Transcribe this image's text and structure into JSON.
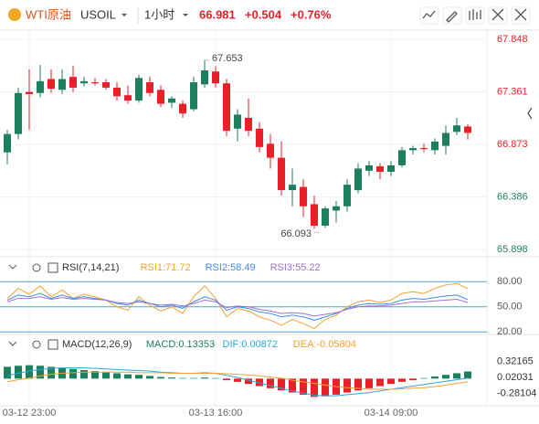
{
  "header": {
    "symbol_name": "WTI原油",
    "symbol": "USOIL",
    "interval": "1小时",
    "price": "66.981",
    "change": "+0.504",
    "change_pct": "+0.76%"
  },
  "chart_data": [
    {
      "type": "candlestick",
      "categories": [
        null,
        null,
        "03-12 23:00",
        null,
        null,
        null,
        null,
        null,
        null,
        null,
        null,
        null,
        null,
        null,
        null,
        null,
        null,
        null,
        null,
        "03-13 16:00",
        null,
        null,
        null,
        null,
        null,
        null,
        null,
        null,
        null,
        null,
        null,
        null,
        null,
        null,
        null,
        "03-14 09:00",
        null,
        null,
        null,
        null,
        null,
        null,
        null
      ],
      "open": [
        66.8,
        66.97,
        67.36,
        67.35,
        67.48,
        67.38,
        67.5,
        67.44,
        67.45,
        67.45,
        67.4,
        67.33,
        67.28,
        67.45,
        67.38,
        67.26,
        67.25,
        67.2,
        67.43,
        67.55,
        67.44,
        67.02,
        67.12,
        67.02,
        66.88,
        66.75,
        66.45,
        66.48,
        66.32,
        66.12,
        66.26,
        66.3,
        66.45,
        66.63,
        66.67,
        66.62,
        66.68,
        66.82,
        66.84,
        66.82,
        66.86,
        66.99,
        67.04
      ],
      "high": [
        67.01,
        67.4,
        67.57,
        67.61,
        67.57,
        67.57,
        67.6,
        67.5,
        67.49,
        67.48,
        67.45,
        67.42,
        67.52,
        67.5,
        67.42,
        67.32,
        67.28,
        67.5,
        67.653,
        67.6,
        67.48,
        67.2,
        67.3,
        67.08,
        66.97,
        66.9,
        66.65,
        66.55,
        66.4,
        66.3,
        66.35,
        66.55,
        66.7,
        66.72,
        66.7,
        66.72,
        66.85,
        66.86,
        66.88,
        66.93,
        67.05,
        67.12,
        67.06
      ],
      "low": [
        66.69,
        66.92,
        67.01,
        67.31,
        67.35,
        67.34,
        67.36,
        67.41,
        67.42,
        67.38,
        67.28,
        67.25,
        67.26,
        67.32,
        67.22,
        67.21,
        67.12,
        67.18,
        67.4,
        67.4,
        66.95,
        66.9,
        66.95,
        66.8,
        66.65,
        66.4,
        66.3,
        66.2,
        66.093,
        66.1,
        66.15,
        66.25,
        66.42,
        66.58,
        66.55,
        66.58,
        66.66,
        66.78,
        66.8,
        66.78,
        66.78,
        66.96,
        66.92
      ],
      "close": [
        66.97,
        67.35,
        67.34,
        67.46,
        67.39,
        67.48,
        67.4,
        67.46,
        67.44,
        67.4,
        67.32,
        67.28,
        67.49,
        67.35,
        67.25,
        67.3,
        67.16,
        67.45,
        67.56,
        67.44,
        67.0,
        67.15,
        67.0,
        66.85,
        66.75,
        66.45,
        66.5,
        66.3,
        66.12,
        66.28,
        66.3,
        66.5,
        66.65,
        66.68,
        66.62,
        66.68,
        66.82,
        66.84,
        66.83,
        66.9,
        66.98,
        67.05,
        66.981
      ],
      "up_color": "#1e7f5c",
      "down_color": "#e8202a",
      "ylim": [
        65.832,
        67.933
      ],
      "yticks": [
        67.848,
        67.361,
        66.873,
        66.386,
        65.898
      ],
      "ytick_colors": [
        "#e8202a",
        "#e8202a",
        "#e8202a",
        "#1e7f5c",
        "#1e7f5c"
      ],
      "grid": true
    },
    {
      "type": "line",
      "title": "RSI(7,14,21)",
      "series": [
        {
          "name": "RSI1:71.72",
          "color": "#f5a030",
          "values": [
            60,
            72,
            65,
            75,
            62,
            70,
            60,
            65,
            62,
            58,
            50,
            46,
            62,
            52,
            45,
            50,
            42,
            62,
            75,
            60,
            38,
            48,
            45,
            38,
            34,
            28,
            35,
            30,
            24,
            35,
            40,
            50,
            56,
            58,
            55,
            58,
            66,
            68,
            66,
            72,
            76,
            78,
            71.72
          ]
        },
        {
          "name": "RSI2:58.49",
          "color": "#3a8ee6",
          "values": [
            58,
            64,
            62,
            66,
            60,
            64,
            60,
            62,
            60,
            58,
            54,
            52,
            58,
            54,
            50,
            52,
            48,
            56,
            62,
            58,
            46,
            50,
            48,
            44,
            42,
            38,
            40,
            38,
            34,
            38,
            42,
            48,
            52,
            54,
            53,
            54,
            58,
            60,
            59,
            61,
            63,
            64,
            58.49
          ]
        },
        {
          "name": "RSI3:55.22",
          "color": "#a070d0",
          "values": [
            56,
            60,
            60,
            62,
            59,
            61,
            59,
            60,
            59,
            58,
            55,
            54,
            56,
            54,
            52,
            53,
            51,
            54,
            58,
            56,
            49,
            51,
            50,
            47,
            45,
            42,
            43,
            42,
            39,
            41,
            43,
            47,
            50,
            51,
            51,
            52,
            54,
            56,
            56,
            57,
            58,
            59,
            55.22
          ]
        }
      ],
      "ylim": [
        17,
        89
      ],
      "yticks": [
        {
          "value": 80,
          "label": "80.00"
        },
        {
          "value": 50,
          "label": "50.00"
        },
        {
          "value": 20,
          "label": "20.00"
        }
      ]
    },
    {
      "type": "macd",
      "title": "MACD(12,26,9)",
      "series": [
        {
          "name": "MACD:0.13353",
          "up_color": "#1e7f5c",
          "down_color": "#e8202a",
          "values": [
            0.22,
            0.24,
            0.25,
            0.24,
            0.22,
            0.2,
            0.18,
            0.16,
            0.14,
            0.12,
            0.1,
            0.08,
            0.07,
            0.05,
            0.03,
            0.02,
            0.01,
            0.01,
            0.02,
            0.01,
            -0.03,
            -0.06,
            -0.1,
            -0.14,
            -0.18,
            -0.22,
            -0.26,
            -0.3,
            -0.34,
            -0.33,
            -0.3,
            -0.26,
            -0.22,
            -0.18,
            -0.14,
            -0.1,
            -0.06,
            -0.03,
            0.01,
            0.04,
            0.07,
            0.1,
            0.13353
          ]
        },
        {
          "name": "DIF:0.00872",
          "color": "#2aa8d8",
          "values": [
            0.05,
            0.1,
            0.14,
            0.17,
            0.19,
            0.2,
            0.2,
            0.2,
            0.19,
            0.18,
            0.17,
            0.16,
            0.15,
            0.14,
            0.12,
            0.11,
            0.1,
            0.1,
            0.11,
            0.1,
            0.06,
            0.02,
            -0.03,
            -0.08,
            -0.13,
            -0.18,
            -0.23,
            -0.27,
            -0.31,
            -0.32,
            -0.32,
            -0.3,
            -0.28,
            -0.26,
            -0.23,
            -0.2,
            -0.17,
            -0.14,
            -0.11,
            -0.08,
            -0.05,
            -0.02,
            0.00872
          ]
        },
        {
          "name": "DEA:-0.05804",
          "color": "#f5a030",
          "values": [
            -0.06,
            -0.02,
            0.01,
            0.05,
            0.08,
            0.1,
            0.11,
            0.12,
            0.12,
            0.12,
            0.12,
            0.12,
            0.11,
            0.11,
            0.11,
            0.1,
            0.1,
            0.1,
            0.1,
            0.1,
            0.09,
            0.08,
            0.07,
            0.05,
            0.03,
            0.01,
            -0.03,
            -0.06,
            -0.09,
            -0.12,
            -0.15,
            -0.17,
            -0.18,
            -0.2,
            -0.2,
            -0.2,
            -0.19,
            -0.18,
            -0.17,
            -0.15,
            -0.12,
            -0.09,
            -0.05804
          ]
        }
      ],
      "ylim": [
        -0.506,
        0.5
      ],
      "yticks": [
        0.32165,
        0.02031,
        -0.28104
      ]
    }
  ]
}
